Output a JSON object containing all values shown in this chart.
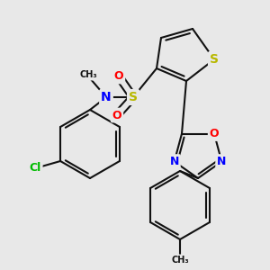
{
  "bg_color": "#e8e8e8",
  "bond_color": "#111111",
  "bond_width": 1.5,
  "atom_colors": {
    "S": "#b8b800",
    "O": "#ff0000",
    "N": "#0000ff",
    "Cl": "#00bb00",
    "C": "#111111"
  },
  "fig_bg": "#e8e8e8"
}
